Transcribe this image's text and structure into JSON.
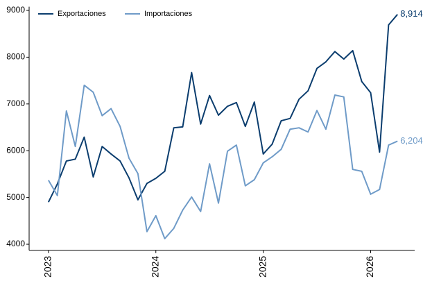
{
  "chart_data": {
    "type": "line",
    "x": [
      2023,
      2023.083,
      2023.167,
      2023.25,
      2023.333,
      2023.417,
      2023.5,
      2023.583,
      2023.667,
      2023.75,
      2023.833,
      2023.917,
      2024,
      2024.083,
      2024.167,
      2024.25,
      2024.333,
      2024.417,
      2024.5,
      2024.583,
      2024.667,
      2024.75,
      2024.833,
      2024.917,
      2025,
      2025.083,
      2025.167,
      2025.25,
      2025.333,
      2025.417,
      2025.5,
      2025.583,
      2025.667,
      2025.75,
      2025.833,
      2025.917,
      2026,
      2026.083,
      2026.167,
      2026.25
    ],
    "series": [
      {
        "name": "Exportaciones",
        "color": "#0b3d6e",
        "values": [
          4900,
          5290,
          5780,
          5820,
          6290,
          5440,
          6090,
          5930,
          5780,
          5420,
          4950,
          5300,
          5410,
          5560,
          6490,
          6510,
          7670,
          6570,
          7180,
          6760,
          6950,
          7030,
          6520,
          7040,
          5930,
          6140,
          6640,
          6690,
          7100,
          7280,
          7760,
          7900,
          8120,
          7960,
          8140,
          7480,
          7240,
          5970,
          8690,
          8914
        ],
        "value_labels": [
          null,
          null,
          null,
          null,
          null,
          null,
          null,
          null,
          null,
          null,
          null,
          null,
          null,
          null,
          null,
          null,
          null,
          null,
          null,
          null,
          null,
          null,
          null,
          null,
          null,
          null,
          null,
          null,
          null,
          null,
          null,
          null,
          null,
          null,
          null,
          null,
          null,
          null,
          null,
          "8,914"
        ]
      },
      {
        "name": "Importaciones",
        "color": "#6f9bc8",
        "values": [
          5370,
          5040,
          6850,
          6090,
          7400,
          7250,
          6750,
          6900,
          6520,
          5840,
          5510,
          4270,
          4610,
          4120,
          4340,
          4730,
          5010,
          4700,
          5720,
          4880,
          5990,
          6120,
          5250,
          5380,
          5740,
          5870,
          6030,
          6460,
          6490,
          6400,
          6860,
          6460,
          7190,
          7150,
          5600,
          5560,
          5070,
          5170,
          6120,
          6204
        ],
        "value_labels": [
          null,
          null,
          null,
          null,
          null,
          null,
          null,
          null,
          null,
          null,
          null,
          null,
          null,
          null,
          null,
          null,
          null,
          null,
          null,
          null,
          null,
          null,
          null,
          null,
          null,
          null,
          null,
          null,
          null,
          null,
          null,
          null,
          null,
          null,
          null,
          null,
          null,
          null,
          null,
          "6,204"
        ]
      }
    ],
    "xlim": [
      2022.82,
      2026.41
    ],
    "xticks": [
      2023,
      2024,
      2025,
      2026
    ],
    "ylim": [
      3870,
      9080
    ],
    "yticks": [
      4000,
      5000,
      6000,
      7000,
      8000,
      9000
    ],
    "legend": "top-left",
    "grid": false
  }
}
